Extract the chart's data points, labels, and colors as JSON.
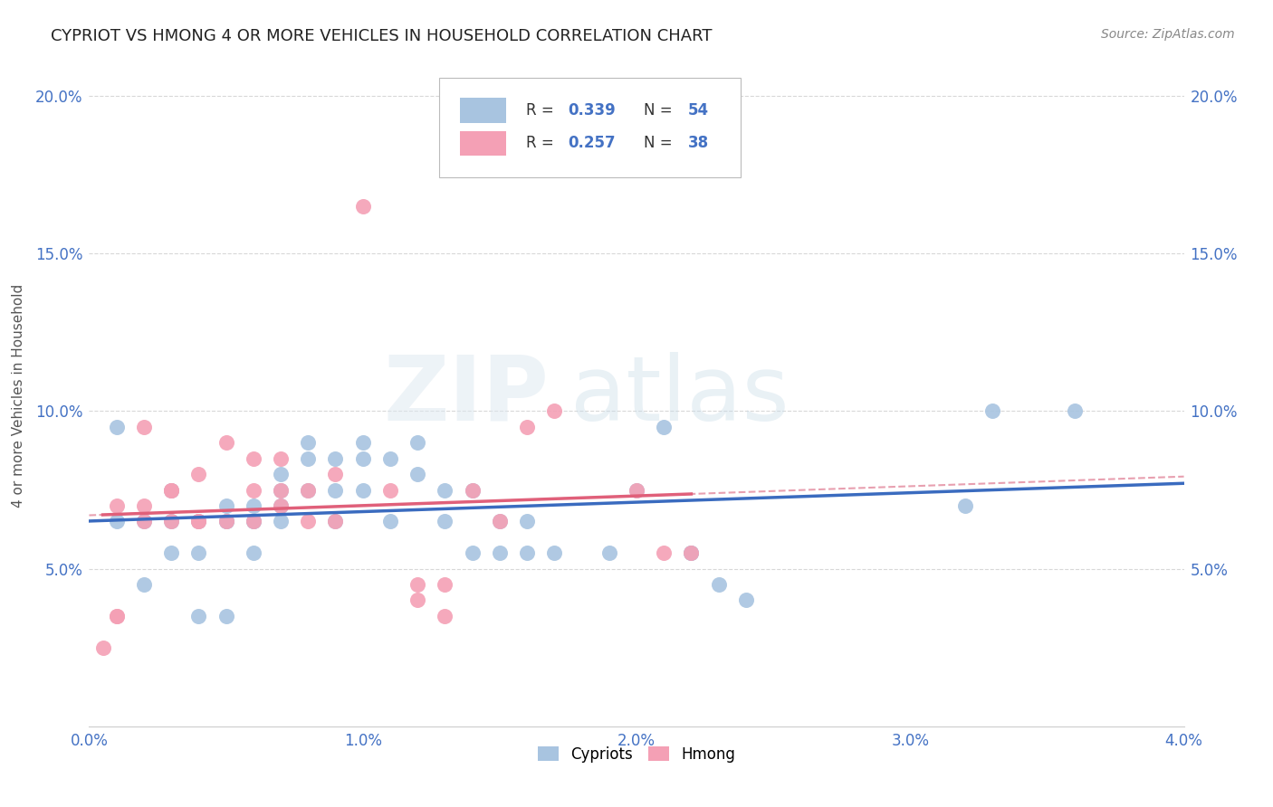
{
  "title": "Cypriot vs Hmong 4 or more Vehicles in Household Correlation Chart",
  "source": "Source: ZipAtlas.com",
  "ylabel": "4 or more Vehicles in Household",
  "xlim": [
    0.0,
    0.04
  ],
  "ylim": [
    0.0,
    0.21
  ],
  "xtick_labels": [
    "0.0%",
    "1.0%",
    "2.0%",
    "3.0%",
    "4.0%"
  ],
  "xtick_vals": [
    0.0,
    0.01,
    0.02,
    0.03,
    0.04
  ],
  "ytick_labels": [
    "5.0%",
    "10.0%",
    "15.0%",
    "20.0%"
  ],
  "ytick_vals": [
    0.05,
    0.1,
    0.15,
    0.2
  ],
  "cypriot_color": "#a8c4e0",
  "hmong_color": "#f4a0b5",
  "cypriot_line_color": "#3a6bbf",
  "hmong_line_color": "#e0607a",
  "hmong_dash_color": "#e8a0b0",
  "legend_r1": "0.339",
  "legend_n1": "54",
  "legend_r2": "0.257",
  "legend_n2": "38",
  "legend_label1": "Cypriots",
  "legend_label2": "Hmong",
  "watermark_zip": "ZIP",
  "watermark_atlas": "atlas",
  "text_blue": "#4472c4",
  "text_dark": "#444444",
  "cypriot_x": [
    0.001,
    0.001,
    0.002,
    0.002,
    0.003,
    0.003,
    0.003,
    0.004,
    0.004,
    0.004,
    0.005,
    0.005,
    0.005,
    0.005,
    0.006,
    0.006,
    0.006,
    0.006,
    0.007,
    0.007,
    0.007,
    0.007,
    0.008,
    0.008,
    0.008,
    0.009,
    0.009,
    0.009,
    0.01,
    0.01,
    0.01,
    0.011,
    0.011,
    0.012,
    0.012,
    0.013,
    0.013,
    0.014,
    0.014,
    0.015,
    0.015,
    0.016,
    0.016,
    0.017,
    0.019,
    0.02,
    0.021,
    0.022,
    0.022,
    0.023,
    0.024,
    0.032,
    0.033,
    0.036
  ],
  "cypriot_y": [
    0.065,
    0.095,
    0.065,
    0.045,
    0.055,
    0.065,
    0.075,
    0.055,
    0.065,
    0.035,
    0.065,
    0.065,
    0.07,
    0.035,
    0.07,
    0.065,
    0.065,
    0.055,
    0.08,
    0.075,
    0.07,
    0.065,
    0.09,
    0.085,
    0.075,
    0.085,
    0.075,
    0.065,
    0.09,
    0.085,
    0.075,
    0.085,
    0.065,
    0.09,
    0.08,
    0.075,
    0.065,
    0.055,
    0.075,
    0.065,
    0.055,
    0.065,
    0.055,
    0.055,
    0.055,
    0.075,
    0.095,
    0.055,
    0.055,
    0.045,
    0.04,
    0.07,
    0.1,
    0.1
  ],
  "hmong_x": [
    0.0005,
    0.001,
    0.001,
    0.001,
    0.002,
    0.002,
    0.002,
    0.003,
    0.003,
    0.003,
    0.004,
    0.004,
    0.004,
    0.005,
    0.005,
    0.006,
    0.006,
    0.006,
    0.007,
    0.007,
    0.007,
    0.008,
    0.008,
    0.009,
    0.009,
    0.01,
    0.011,
    0.012,
    0.012,
    0.013,
    0.013,
    0.014,
    0.015,
    0.016,
    0.017,
    0.02,
    0.021,
    0.022
  ],
  "hmong_y": [
    0.025,
    0.035,
    0.035,
    0.07,
    0.065,
    0.07,
    0.095,
    0.075,
    0.075,
    0.065,
    0.08,
    0.065,
    0.065,
    0.09,
    0.065,
    0.085,
    0.075,
    0.065,
    0.085,
    0.075,
    0.07,
    0.075,
    0.065,
    0.08,
    0.065,
    0.165,
    0.075,
    0.045,
    0.04,
    0.045,
    0.035,
    0.075,
    0.065,
    0.095,
    0.1,
    0.075,
    0.055,
    0.055
  ]
}
